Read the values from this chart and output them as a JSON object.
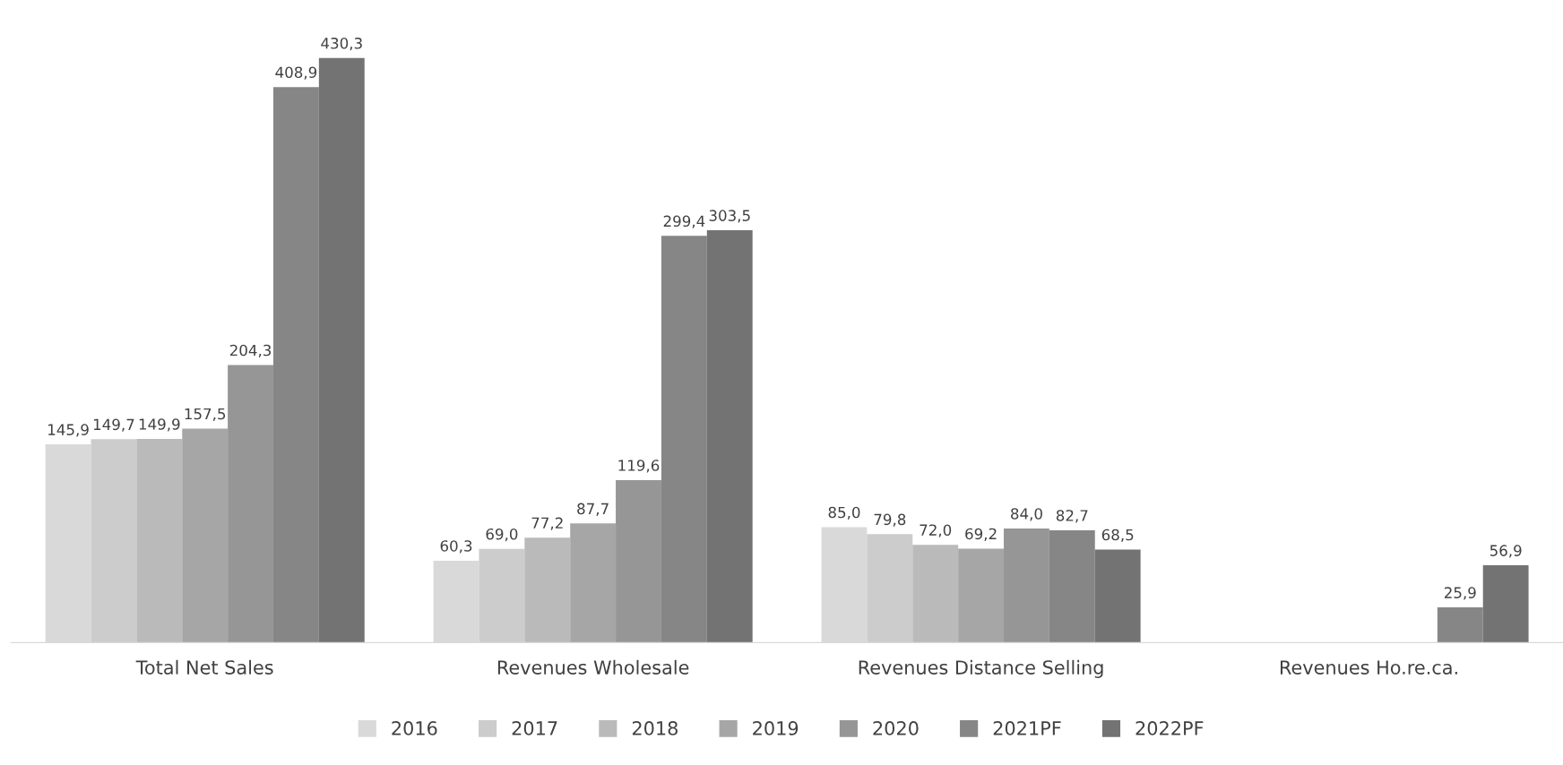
{
  "chart_data": {
    "type": "bar",
    "categories": [
      "Total Net Sales",
      "Revenues Wholesale",
      "Revenues Distance Selling",
      "Revenues Ho.re.ca."
    ],
    "series": [
      {
        "name": "2016",
        "color": "#d9d9d9",
        "values": [
          145.9,
          60.3,
          85.0,
          null
        ],
        "value_labels": [
          "145,9",
          "60,3",
          "85,0",
          null
        ]
      },
      {
        "name": "2017",
        "color": "#cccccc",
        "values": [
          149.7,
          69.0,
          79.8,
          null
        ],
        "value_labels": [
          "149,7",
          "69,0",
          "79,8",
          null
        ]
      },
      {
        "name": "2018",
        "color": "#bababa",
        "values": [
          149.9,
          77.2,
          72.0,
          null
        ],
        "value_labels": [
          "149,9",
          "77,2",
          "72,0",
          null
        ]
      },
      {
        "name": "2019",
        "color": "#a6a6a6",
        "values": [
          157.5,
          87.7,
          69.2,
          null
        ],
        "value_labels": [
          "157,5",
          "87,7",
          "69,2",
          null
        ]
      },
      {
        "name": "2020",
        "color": "#969696",
        "values": [
          204.3,
          119.6,
          84.0,
          null
        ],
        "value_labels": [
          "204,3",
          "119,6",
          "84,0",
          null
        ]
      },
      {
        "name": "2021PF",
        "color": "#868686",
        "values": [
          408.9,
          299.4,
          82.7,
          25.9
        ],
        "value_labels": [
          "408,9",
          "299,4",
          "82,7",
          "25,9"
        ]
      },
      {
        "name": "2022PF",
        "color": "#737373",
        "values": [
          430.3,
          303.5,
          68.5,
          56.9
        ],
        "value_labels": [
          "430,3",
          "303,5",
          "68,5",
          "56,9"
        ]
      }
    ],
    "legend": "bottom",
    "grid": false,
    "tick_labels": "x"
  }
}
